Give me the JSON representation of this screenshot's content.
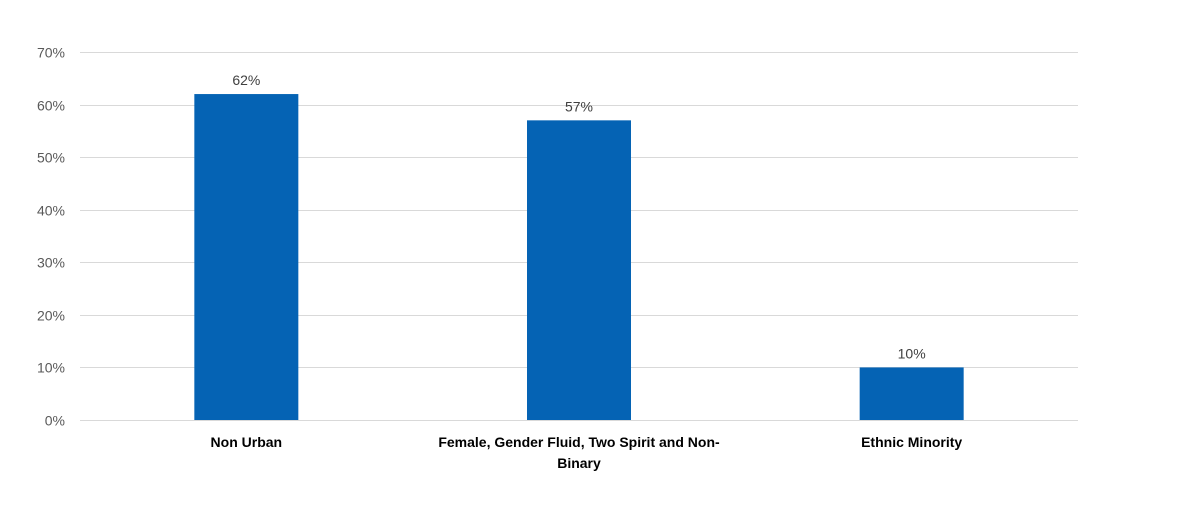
{
  "chart_data": {
    "type": "bar",
    "title": "",
    "xlabel": "",
    "ylabel": "",
    "categories": [
      [
        "Non Urban"
      ],
      [
        "Female, Gender Fluid, Two Spirit and Non-",
        "Binary"
      ],
      [
        "Ethnic Minority"
      ]
    ],
    "values": [
      62,
      57,
      10
    ],
    "value_labels": [
      "62%",
      "57%",
      "10%"
    ],
    "ylim": [
      0,
      70
    ],
    "yticks": [
      0,
      10,
      20,
      30,
      40,
      50,
      60,
      70
    ],
    "ytick_labels": [
      "0%",
      "10%",
      "20%",
      "30%",
      "40%",
      "50%",
      "60%",
      "70%"
    ],
    "grid": true,
    "legend": "none",
    "colors": {
      "bar": "#0563b4",
      "grid": "#d9d9d9",
      "tick_text": "#595959"
    }
  }
}
